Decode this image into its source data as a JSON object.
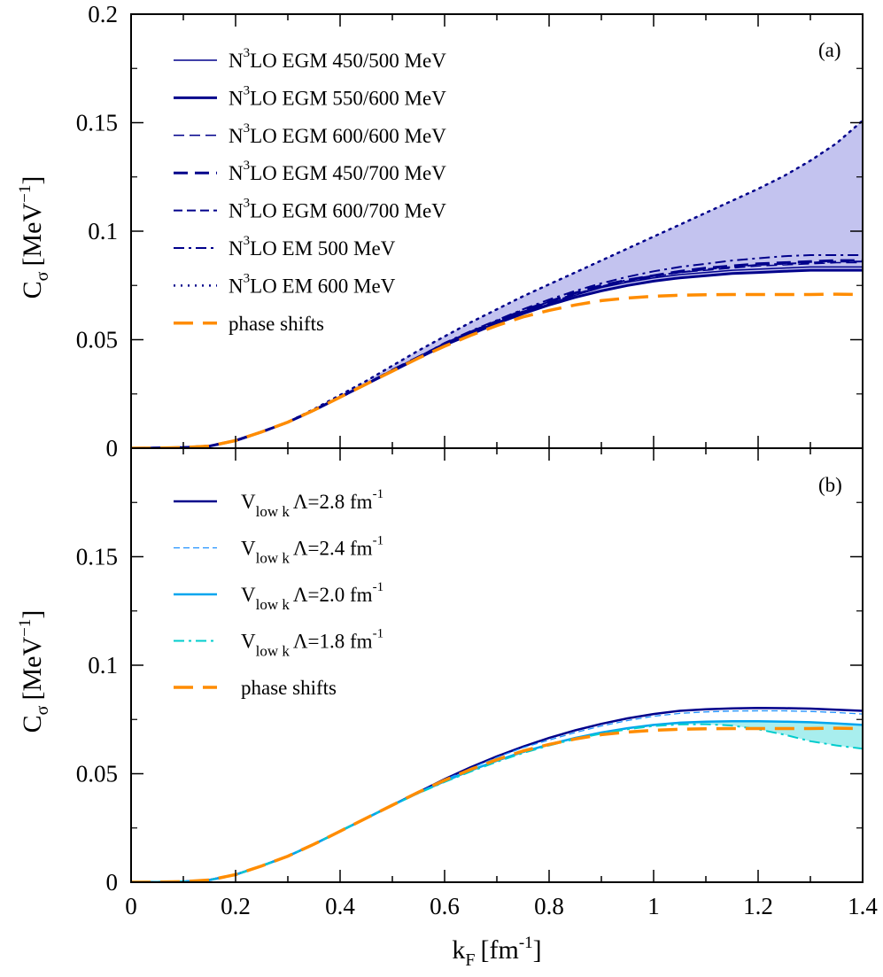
{
  "chart_data": [
    {
      "panel_label": "(a)",
      "type": "line",
      "ylabel": "C",
      "ylabel_sub": "σ",
      "ylabel_unit": "[MeV",
      "ylabel_unit_sup": "−1",
      "ylabel_unit_close": "]",
      "xlim": [
        0,
        1.4
      ],
      "ylim": [
        0,
        0.2
      ],
      "yticks": [
        "0",
        "0.05",
        "0.1",
        "0.15",
        "0.2"
      ],
      "band": {
        "lower": "N3LO EGM 550/600 MeV",
        "upper": "N3LO EM 600 MeV",
        "color": "#c3c3ef"
      },
      "series": [
        {
          "pre": "N",
          "sup": "3",
          "name": "LO  EGM  450/500 MeV",
          "color": "#00008b",
          "dash": "solid",
          "width": 1.5,
          "x": [
            0,
            0.05,
            0.1,
            0.15,
            0.2,
            0.25,
            0.3,
            0.35,
            0.4,
            0.45,
            0.5,
            0.55,
            0.6,
            0.65,
            0.7,
            0.75,
            0.8,
            0.85,
            0.9,
            0.95,
            1.0,
            1.05,
            1.1,
            1.15,
            1.2,
            1.25,
            1.3,
            1.35,
            1.4
          ],
          "y": [
            0,
            0.0001,
            0.0003,
            0.001,
            0.0035,
            0.0075,
            0.012,
            0.0175,
            0.0235,
            0.0295,
            0.036,
            0.042,
            0.048,
            0.053,
            0.058,
            0.0625,
            0.0665,
            0.0705,
            0.074,
            0.0765,
            0.0785,
            0.08,
            0.081,
            0.082,
            0.0825,
            0.083,
            0.0835,
            0.0835,
            0.0835
          ]
        },
        {
          "pre": "N",
          "sup": "3",
          "name": "LO  EGM  550/600 MeV",
          "color": "#00008b",
          "dash": "solid",
          "width": 3,
          "x": [
            0,
            0.05,
            0.1,
            0.15,
            0.2,
            0.25,
            0.3,
            0.35,
            0.4,
            0.45,
            0.5,
            0.55,
            0.6,
            0.65,
            0.7,
            0.75,
            0.8,
            0.85,
            0.9,
            0.95,
            1.0,
            1.05,
            1.1,
            1.15,
            1.2,
            1.25,
            1.3,
            1.35,
            1.4
          ],
          "y": [
            0,
            0.0001,
            0.0003,
            0.001,
            0.0035,
            0.0075,
            0.012,
            0.0175,
            0.0235,
            0.0295,
            0.0355,
            0.0415,
            0.0475,
            0.0525,
            0.0575,
            0.062,
            0.066,
            0.0695,
            0.0725,
            0.075,
            0.077,
            0.0785,
            0.0795,
            0.0805,
            0.081,
            0.0815,
            0.082,
            0.082,
            0.082
          ]
        },
        {
          "pre": "N",
          "sup": "3",
          "name": "LO  EGM  600/600 MeV",
          "color": "#00008b",
          "dash": "12,6",
          "width": 1.5,
          "x": [
            0,
            0.05,
            0.1,
            0.15,
            0.2,
            0.25,
            0.3,
            0.35,
            0.4,
            0.45,
            0.5,
            0.55,
            0.6,
            0.65,
            0.7,
            0.75,
            0.8,
            0.85,
            0.9,
            0.95,
            1.0,
            1.05,
            1.1,
            1.15,
            1.2,
            1.25,
            1.3,
            1.35,
            1.4
          ],
          "y": [
            0,
            0.0001,
            0.0003,
            0.001,
            0.0035,
            0.0075,
            0.012,
            0.0175,
            0.0235,
            0.0295,
            0.036,
            0.042,
            0.048,
            0.0535,
            0.0585,
            0.063,
            0.067,
            0.071,
            0.0745,
            0.077,
            0.079,
            0.081,
            0.082,
            0.083,
            0.084,
            0.0845,
            0.085,
            0.0855,
            0.0855
          ]
        },
        {
          "pre": "N",
          "sup": "3",
          "name": "LO  EGM  450/700 MeV",
          "color": "#00008b",
          "dash": "16,8",
          "width": 3,
          "x": [
            0,
            0.05,
            0.1,
            0.15,
            0.2,
            0.25,
            0.3,
            0.35,
            0.4,
            0.45,
            0.5,
            0.55,
            0.6,
            0.65,
            0.7,
            0.75,
            0.8,
            0.85,
            0.9,
            0.95,
            1.0,
            1.05,
            1.1,
            1.15,
            1.2,
            1.25,
            1.3,
            1.35,
            1.4
          ],
          "y": [
            0,
            0.0001,
            0.0003,
            0.001,
            0.0035,
            0.0075,
            0.012,
            0.0175,
            0.0235,
            0.0295,
            0.036,
            0.042,
            0.048,
            0.0535,
            0.0585,
            0.0635,
            0.0675,
            0.0715,
            0.075,
            0.0775,
            0.0795,
            0.0815,
            0.083,
            0.084,
            0.085,
            0.0855,
            0.086,
            0.0865,
            0.0865
          ]
        },
        {
          "pre": "N",
          "sup": "3",
          "name": "LO  EGM  600/700 MeV",
          "color": "#00008b",
          "dash": "10,5",
          "width": 2,
          "x": [
            0,
            0.05,
            0.1,
            0.15,
            0.2,
            0.25,
            0.3,
            0.35,
            0.4,
            0.45,
            0.5,
            0.55,
            0.6,
            0.65,
            0.7,
            0.75,
            0.8,
            0.85,
            0.9,
            0.95,
            1.0,
            1.05,
            1.1,
            1.15,
            1.2,
            1.25,
            1.3,
            1.35,
            1.4
          ],
          "y": [
            0,
            0.0001,
            0.0003,
            0.001,
            0.0035,
            0.0075,
            0.012,
            0.0175,
            0.0235,
            0.0295,
            0.036,
            0.042,
            0.048,
            0.0535,
            0.0585,
            0.063,
            0.0675,
            0.071,
            0.0745,
            0.0775,
            0.0795,
            0.081,
            0.0825,
            0.0835,
            0.0845,
            0.085,
            0.0855,
            0.086,
            0.086
          ]
        },
        {
          "pre": "N",
          "sup": "3",
          "name": "LO  EM  500 MeV",
          "color": "#00008b",
          "dash": "12,5,3,5",
          "width": 2,
          "x": [
            0,
            0.05,
            0.1,
            0.15,
            0.2,
            0.25,
            0.3,
            0.35,
            0.4,
            0.45,
            0.5,
            0.55,
            0.6,
            0.65,
            0.7,
            0.75,
            0.8,
            0.85,
            0.9,
            0.95,
            1.0,
            1.05,
            1.1,
            1.15,
            1.2,
            1.25,
            1.3,
            1.35,
            1.4
          ],
          "y": [
            0,
            0.0001,
            0.0003,
            0.001,
            0.0035,
            0.0075,
            0.012,
            0.0175,
            0.0235,
            0.0295,
            0.036,
            0.042,
            0.0485,
            0.054,
            0.059,
            0.064,
            0.0685,
            0.0725,
            0.076,
            0.079,
            0.0815,
            0.0835,
            0.085,
            0.0865,
            0.0875,
            0.0885,
            0.089,
            0.089,
            0.089
          ]
        },
        {
          "pre": "N",
          "sup": "3",
          "name": "LO  EM  600 MeV",
          "color": "#00008b",
          "dash": "2,6",
          "width": 2.5,
          "x": [
            0,
            0.05,
            0.1,
            0.15,
            0.2,
            0.25,
            0.3,
            0.35,
            0.4,
            0.45,
            0.5,
            0.55,
            0.6,
            0.65,
            0.7,
            0.75,
            0.8,
            0.85,
            0.9,
            0.95,
            1.0,
            1.05,
            1.1,
            1.15,
            1.2,
            1.25,
            1.3,
            1.35,
            1.4
          ],
          "y": [
            0,
            0.0001,
            0.0003,
            0.001,
            0.0035,
            0.0075,
            0.012,
            0.018,
            0.0245,
            0.031,
            0.038,
            0.045,
            0.0515,
            0.058,
            0.064,
            0.07,
            0.0755,
            0.081,
            0.0865,
            0.092,
            0.0975,
            0.103,
            0.1085,
            0.114,
            0.1195,
            0.1255,
            0.1325,
            0.1405,
            0.151
          ]
        },
        {
          "pre": "",
          "sup": "",
          "name": "phase shifts",
          "color": "#ff8c00",
          "dash": "22,11",
          "width": 3.5,
          "x": [
            0,
            0.05,
            0.1,
            0.15,
            0.2,
            0.25,
            0.3,
            0.35,
            0.4,
            0.45,
            0.5,
            0.55,
            0.6,
            0.65,
            0.7,
            0.75,
            0.8,
            0.85,
            0.9,
            0.95,
            1.0,
            1.05,
            1.1,
            1.15,
            1.2,
            1.25,
            1.3,
            1.35,
            1.4
          ],
          "y": [
            0,
            0.0001,
            0.0003,
            0.001,
            0.0035,
            0.0075,
            0.012,
            0.0175,
            0.0235,
            0.0295,
            0.0355,
            0.0415,
            0.047,
            0.052,
            0.0565,
            0.0605,
            0.0635,
            0.066,
            0.068,
            0.0692,
            0.07,
            0.0705,
            0.0707,
            0.0708,
            0.0708,
            0.0708,
            0.0708,
            0.071,
            0.0708
          ]
        }
      ]
    },
    {
      "panel_label": "(b)",
      "type": "line",
      "ylabel": "C",
      "ylabel_sub": "σ",
      "ylabel_unit": "[MeV",
      "ylabel_unit_sup": "−1",
      "ylabel_unit_close": "]",
      "xlabel": "k",
      "xlabel_sub": "F",
      "xlabel_unit": "[fm",
      "xlabel_unit_sup": "-1",
      "xlabel_unit_close": "]",
      "xlim": [
        0,
        1.4
      ],
      "ylim": [
        0,
        0.2
      ],
      "yticks": [
        "0",
        "0.05",
        "0.1",
        "0.15"
      ],
      "xticks": [
        "0",
        "0.2",
        "0.4",
        "0.6",
        "0.8",
        "1",
        "1.2",
        "1.4"
      ],
      "band": {
        "lower": "Vlowk Λ=1.8",
        "upper": "Vlowk Λ=2.0",
        "color": "#a8eeee"
      },
      "series": [
        {
          "pre": "V",
          "sub": "low k",
          "name": "Λ=2.8 fm",
          "sup": "-1",
          "color": "#00008b",
          "dash": "solid",
          "width": 2.5,
          "x": [
            0,
            0.05,
            0.1,
            0.15,
            0.2,
            0.25,
            0.3,
            0.35,
            0.4,
            0.45,
            0.5,
            0.55,
            0.6,
            0.65,
            0.7,
            0.75,
            0.8,
            0.85,
            0.9,
            0.95,
            1.0,
            1.05,
            1.1,
            1.15,
            1.2,
            1.25,
            1.3,
            1.35,
            1.4
          ],
          "y": [
            0,
            0.0001,
            0.0003,
            0.001,
            0.0035,
            0.0075,
            0.012,
            0.0175,
            0.0235,
            0.0295,
            0.0355,
            0.0415,
            0.0475,
            0.053,
            0.058,
            0.0625,
            0.0665,
            0.07,
            0.073,
            0.0755,
            0.0775,
            0.079,
            0.0797,
            0.0801,
            0.0803,
            0.0802,
            0.08,
            0.0795,
            0.079
          ]
        },
        {
          "pre": "V",
          "sub": "low k",
          "name": "Λ=2.4 fm",
          "sup": "-1",
          "color": "#1e90ff",
          "dash": "7,4",
          "width": 1.3,
          "x": [
            0,
            0.05,
            0.1,
            0.15,
            0.2,
            0.25,
            0.3,
            0.35,
            0.4,
            0.45,
            0.5,
            0.55,
            0.6,
            0.65,
            0.7,
            0.75,
            0.8,
            0.85,
            0.9,
            0.95,
            1.0,
            1.05,
            1.1,
            1.15,
            1.2,
            1.25,
            1.3,
            1.35,
            1.4
          ],
          "y": [
            0,
            0.0001,
            0.0003,
            0.001,
            0.0035,
            0.0075,
            0.012,
            0.0175,
            0.0235,
            0.0295,
            0.0355,
            0.0415,
            0.0472,
            0.0525,
            0.0575,
            0.062,
            0.0655,
            0.069,
            0.072,
            0.0745,
            0.0765,
            0.0778,
            0.0785,
            0.0789,
            0.079,
            0.079,
            0.0787,
            0.0782,
            0.0775
          ]
        },
        {
          "pre": "V",
          "sub": "low k",
          "name": "Λ=2.0 fm",
          "sup": "-1",
          "color": "#00a5ee",
          "dash": "solid",
          "width": 2.5,
          "x": [
            0,
            0.05,
            0.1,
            0.15,
            0.2,
            0.25,
            0.3,
            0.35,
            0.4,
            0.45,
            0.5,
            0.55,
            0.6,
            0.65,
            0.7,
            0.75,
            0.8,
            0.85,
            0.9,
            0.95,
            1.0,
            1.05,
            1.1,
            1.15,
            1.2,
            1.25,
            1.3,
            1.35,
            1.4
          ],
          "y": [
            0,
            0.0001,
            0.0003,
            0.001,
            0.0035,
            0.0075,
            0.012,
            0.0175,
            0.0235,
            0.0295,
            0.0355,
            0.0412,
            0.0465,
            0.0515,
            0.056,
            0.06,
            0.0635,
            0.0665,
            0.069,
            0.071,
            0.0725,
            0.0735,
            0.074,
            0.0742,
            0.0742,
            0.074,
            0.0737,
            0.0732,
            0.0725
          ]
        },
        {
          "pre": "V",
          "sub": "low k",
          "name": "Λ=1.8 fm",
          "sup": "-1",
          "color": "#00cccc",
          "dash": "12,5,3,5",
          "width": 2,
          "x": [
            0,
            0.05,
            0.1,
            0.15,
            0.2,
            0.25,
            0.3,
            0.35,
            0.4,
            0.45,
            0.5,
            0.55,
            0.6,
            0.65,
            0.7,
            0.75,
            0.8,
            0.85,
            0.9,
            0.95,
            1.0,
            1.05,
            1.1,
            1.15,
            1.2,
            1.25,
            1.3,
            1.35,
            1.4
          ],
          "y": [
            0,
            0.0001,
            0.0003,
            0.001,
            0.0035,
            0.0075,
            0.012,
            0.0175,
            0.0235,
            0.0295,
            0.0355,
            0.041,
            0.0462,
            0.051,
            0.0555,
            0.0595,
            0.063,
            0.066,
            0.0685,
            0.0705,
            0.072,
            0.0727,
            0.0728,
            0.0722,
            0.0705,
            0.068,
            0.065,
            0.063,
            0.0615
          ]
        },
        {
          "pre": "",
          "sub": "",
          "name": "phase shifts",
          "sup": "",
          "color": "#ff8c00",
          "dash": "22,11",
          "width": 3.5,
          "x": [
            0,
            0.05,
            0.1,
            0.15,
            0.2,
            0.25,
            0.3,
            0.35,
            0.4,
            0.45,
            0.5,
            0.55,
            0.6,
            0.65,
            0.7,
            0.75,
            0.8,
            0.85,
            0.9,
            0.95,
            1.0,
            1.05,
            1.1,
            1.15,
            1.2,
            1.25,
            1.3,
            1.35,
            1.4
          ],
          "y": [
            0,
            0.0001,
            0.0003,
            0.001,
            0.0035,
            0.0075,
            0.012,
            0.0175,
            0.0235,
            0.0295,
            0.0355,
            0.0415,
            0.047,
            0.052,
            0.0565,
            0.0605,
            0.0635,
            0.066,
            0.068,
            0.0692,
            0.07,
            0.0705,
            0.0707,
            0.0708,
            0.0708,
            0.0708,
            0.0708,
            0.071,
            0.0708
          ]
        }
      ]
    }
  ]
}
